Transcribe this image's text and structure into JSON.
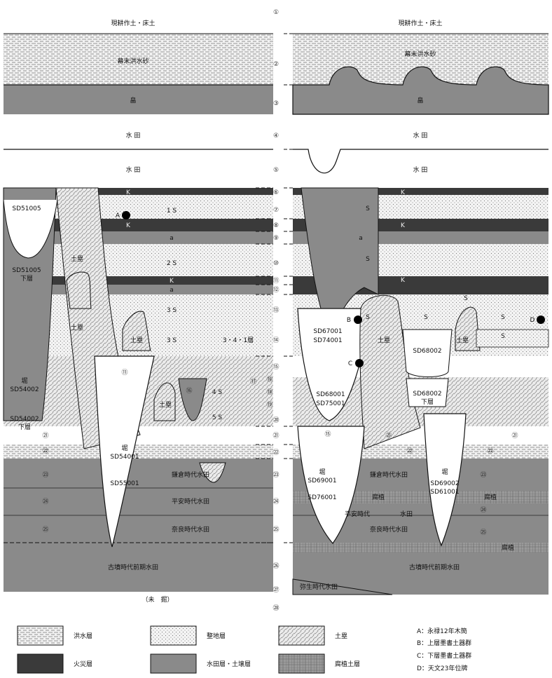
{
  "layer_numbers": [
    "①",
    "②",
    "③",
    "④",
    "⑤",
    "⑥",
    "⑦",
    "⑧",
    "⑨",
    "⑩",
    "⑪",
    "⑫",
    "⑬",
    "⑭",
    "⑮",
    "⑯",
    "⑰",
    "⑱",
    "⑲",
    "⑳",
    "㉑",
    "㉒",
    "㉓",
    "㉔",
    "㉕",
    "㉖",
    "㉗",
    "㉘"
  ],
  "left": {
    "top_soil": "現耕作土・床土",
    "flood_sand": "幕末洪水砂",
    "field": "畠",
    "paddy1": "水 田",
    "paddy2": "水 田",
    "K": "K",
    "a": "a",
    "s1": "1 S",
    "s2": "2 S",
    "s3a": "3 S",
    "s3b": "3 S",
    "s3_note": "3・4・1層",
    "s4": "4 S",
    "s5": "5 S",
    "sd51005": "SD51005",
    "sd51005_lower1": "SD51005",
    "sd51005_lower2": "下層",
    "dorui": "土塁",
    "hori": "堀",
    "sd54002": "SD54002",
    "sd54002_lower1": "SD54002",
    "sd54002_lower2": "下層",
    "sd54001": "SD54001",
    "sd55001": "SD55001",
    "kamakura": "鎌倉時代水田",
    "heian": "平安時代水田",
    "nara": "奈良時代水田",
    "kofun": "古墳時代前期水田",
    "unexcavated": "（未　掘）",
    "marker_A": "A",
    "c11": "⑪",
    "c16": "⑯",
    "c21": "㉑",
    "c22": "㉒",
    "c23": "㉓",
    "c24": "㉔",
    "c25": "㉕"
  },
  "right": {
    "top_soil": "現耕作土・床土",
    "flood_sand": "幕末洪水砂",
    "field": "畠",
    "paddy1": "水 田",
    "paddy2": "水 田",
    "K": "K",
    "a": "a",
    "S": "S",
    "sd67001": "SD67001",
    "sd74001": "SD74001",
    "sd68001": "SD68001",
    "sd75001": "SD75001",
    "sd68002": "SD68002",
    "sd68002_lower1": "SD68002",
    "sd68002_lower2": "下層",
    "hori": "堀",
    "sd69001": "SD69001",
    "sd76001": "SD76001",
    "sd69002": "SD69002",
    "sd61001": "SD61001",
    "dorui": "土塁",
    "kamakura": "鎌倉時代水田",
    "fushoku": "腐植",
    "heian": "平安時代",
    "suiden": "水田",
    "nara": "奈良時代水田",
    "kofun": "古墳時代前期水田",
    "yayoi": "弥生時代水田",
    "marker_B": "B",
    "marker_C": "C",
    "marker_D": "D",
    "c15": "⑮",
    "c21": "㉑",
    "c22": "㉒",
    "c23": "㉓",
    "c24": "㉔",
    "c25": "㉕"
  },
  "legend": {
    "flood": "洪水層",
    "fire": "火災層",
    "leveling": "整地層",
    "paddy_soil": "水田層・土壌層",
    "dorui": "土塁",
    "humus": "腐植土層"
  },
  "notes": {
    "A": "A：永禄12年木簡",
    "B": "B：上層墨書土器群",
    "C": "C：下層墨書土器群",
    "D": "D：天文23年位牌"
  },
  "colors": {
    "paddy": "#8a8a8a",
    "fire": "#3a3a3a",
    "line": "#111111"
  }
}
